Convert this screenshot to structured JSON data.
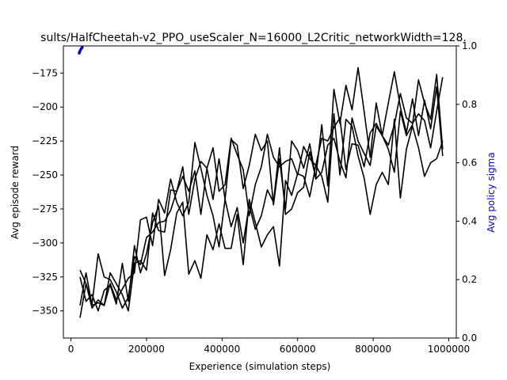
{
  "chart_data": {
    "type": "line",
    "title": "sults/HalfCheetah-v2_PPO_useScaler_N=16000_L2Critic_networkWidth=128.",
    "xlabel": "Experience (simulation steps)",
    "ylabel": "Avg episode reward",
    "y2label": "Avg policy sigma",
    "xlim": [
      -20000,
      1020000
    ],
    "ylim": [
      -370,
      -155
    ],
    "y2lim": [
      0,
      1
    ],
    "xticks": [
      0,
      200000,
      400000,
      600000,
      800000,
      1000000
    ],
    "yticks": [
      -350,
      -325,
      -300,
      -275,
      -250,
      -225,
      -200,
      -175
    ],
    "y2ticks": [
      0.0,
      0.2,
      0.4,
      0.6,
      0.8,
      1.0
    ],
    "grid": false,
    "colors": {
      "reward": "#000000",
      "sigma": "#0000cc",
      "y2label": "#0000cc"
    },
    "series": [
      {
        "x": [
          24000,
          40000,
          56000,
          72000,
          88000,
          104000,
          120000,
          136000,
          152000,
          168000,
          184000,
          200000,
          216000,
          232000,
          248000,
          264000,
          280000,
          296000,
          312000,
          328000,
          344000,
          360000,
          376000,
          392000,
          408000,
          424000,
          440000,
          456000,
          472000,
          488000,
          504000,
          520000,
          536000,
          552000,
          568000,
          584000,
          600000,
          616000,
          632000,
          648000,
          664000,
          680000,
          696000,
          712000,
          728000,
          744000,
          760000,
          776000,
          792000,
          808000,
          824000,
          840000,
          856000,
          872000,
          888000,
          904000,
          920000,
          936000,
          952000,
          968000,
          984000
        ],
        "values": [
          -355,
          -330,
          -345,
          -308,
          -325,
          -327,
          -336,
          -348,
          -340,
          -310,
          -316,
          -296,
          -292,
          -285,
          -284,
          -276,
          -262,
          -251,
          -262,
          -247,
          -279,
          -245,
          -230,
          -262,
          -257,
          -223,
          -235,
          -246,
          -280,
          -257,
          -244,
          -220,
          -237,
          -244,
          -240,
          -238,
          -250,
          -229,
          -238,
          -243,
          -223,
          -225,
          -215,
          -208,
          -246,
          -227,
          -228,
          -244,
          -219,
          -212,
          -221,
          -231,
          -248,
          -203,
          -221,
          -213,
          -180,
          -197,
          -209,
          -176,
          -231
        ]
      },
      {
        "x": [
          24000,
          40000,
          56000,
          72000,
          88000,
          104000,
          120000,
          136000,
          152000,
          168000,
          184000,
          200000,
          216000,
          232000,
          248000,
          264000,
          280000,
          296000,
          312000,
          328000,
          344000,
          360000,
          376000,
          392000,
          408000,
          424000,
          440000,
          456000,
          472000,
          488000,
          504000,
          520000,
          536000,
          552000,
          568000,
          584000,
          600000,
          616000,
          632000,
          648000,
          664000,
          680000,
          696000,
          712000,
          728000,
          744000,
          760000,
          776000,
          792000,
          808000,
          824000,
          840000,
          856000,
          872000,
          888000,
          904000,
          920000,
          936000,
          952000,
          968000,
          984000
        ],
        "values": [
          -346,
          -322,
          -346,
          -344,
          -346,
          -322,
          -330,
          -338,
          -350,
          -315,
          -313,
          -320,
          -278,
          -291,
          -292,
          -261,
          -262,
          -244,
          -279,
          -253,
          -240,
          -245,
          -268,
          -238,
          -268,
          -288,
          -274,
          -300,
          -272,
          -290,
          -280,
          -261,
          -270,
          -230,
          -279,
          -275,
          -263,
          -259,
          -233,
          -252,
          -213,
          -258,
          -187,
          -212,
          -184,
          -202,
          -171,
          -203,
          -237,
          -197,
          -221,
          -197,
          -174,
          -200,
          -219,
          -194,
          -221,
          -195,
          -216,
          -185,
          -236
        ]
      },
      {
        "x": [
          24000,
          40000,
          56000,
          72000,
          88000,
          104000,
          120000,
          136000,
          152000,
          168000,
          184000,
          200000,
          216000,
          232000,
          248000,
          264000,
          280000,
          296000,
          312000,
          328000,
          344000,
          360000,
          376000,
          392000,
          408000,
          424000,
          440000,
          456000,
          472000,
          488000,
          504000,
          520000,
          536000,
          552000,
          568000,
          584000,
          600000,
          616000,
          632000,
          648000,
          664000,
          680000,
          696000,
          712000,
          728000,
          744000,
          760000,
          776000,
          792000,
          808000,
          824000,
          840000,
          856000,
          872000,
          888000,
          904000,
          920000,
          936000,
          952000,
          968000,
          984000
        ],
        "values": [
          -320,
          -330,
          -348,
          -342,
          -346,
          -330,
          -342,
          -334,
          -326,
          -322,
          -283,
          -281,
          -302,
          -268,
          -278,
          -253,
          -270,
          -280,
          -270,
          -226,
          -245,
          -265,
          -280,
          -303,
          -268,
          -224,
          -228,
          -260,
          -243,
          -220,
          -232,
          -225,
          -272,
          -238,
          -275,
          -225,
          -232,
          -245,
          -227,
          -253,
          -248,
          -228,
          -223,
          -240,
          -252,
          -208,
          -225,
          -234,
          -243,
          -214,
          -221,
          -228,
          -213,
          -190,
          -208,
          -212,
          -205,
          -210,
          -230,
          -203,
          -178
        ]
      },
      {
        "x": [
          24000,
          40000,
          56000,
          72000,
          88000,
          104000,
          120000,
          136000,
          152000,
          168000,
          184000,
          200000,
          216000,
          232000,
          248000,
          264000,
          280000,
          296000,
          312000,
          328000,
          344000,
          360000,
          376000,
          392000,
          408000,
          424000,
          440000,
          456000,
          472000,
          488000,
          504000,
          520000,
          536000,
          552000,
          568000,
          584000,
          600000,
          616000,
          632000,
          648000,
          664000,
          680000,
          696000,
          712000,
          728000,
          744000,
          760000,
          776000,
          792000,
          808000,
          824000,
          840000,
          856000,
          872000,
          888000,
          904000,
          920000,
          936000,
          952000,
          968000,
          984000
        ],
        "values": [
          -325,
          -343,
          -338,
          -350,
          -335,
          -331,
          -345,
          -315,
          -343,
          -302,
          -322,
          -308,
          -285,
          -273,
          -324,
          -305,
          -278,
          -270,
          -323,
          -313,
          -326,
          -294,
          -305,
          -286,
          -304,
          -304,
          -279,
          -316,
          -268,
          -285,
          -303,
          -294,
          -288,
          -317,
          -254,
          -265,
          -249,
          -251,
          -266,
          -243,
          -251,
          -270,
          -205,
          -250,
          -209,
          -214,
          -236,
          -252,
          -279,
          -257,
          -248,
          -257,
          -209,
          -267,
          -231,
          -214,
          -230,
          -251,
          -241,
          -238,
          -225
        ]
      }
    ],
    "sigma_series": {
      "x": [
        22000,
        24000,
        27000,
        30000
      ],
      "values": [
        0.975,
        0.983,
        0.99,
        0.995
      ]
    }
  }
}
